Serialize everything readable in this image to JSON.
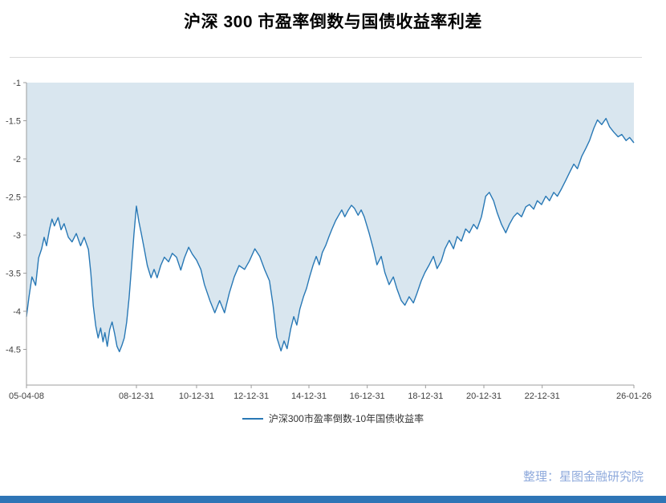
{
  "title": {
    "text": "沪深 300 市盈率倒数与国债收益率利差"
  },
  "legend": {
    "label": "沪深300市盈率倒数-10年国债收益率"
  },
  "source": {
    "text": "整理：星图金融研究院"
  },
  "colors": {
    "line": "#2878b5",
    "fill": "#d9e6ef",
    "axis": "#9c9c9c",
    "tick_text": "#404040",
    "footer_bar": "#2e75b6",
    "source_text": "#8faadc"
  },
  "chart_data": {
    "type": "area",
    "title": "沪深 300 市盈率倒数与国债收益率利差",
    "xlabel": "",
    "ylabel": "",
    "ylim": [
      -5,
      -1
    ],
    "grid": false,
    "legend_position": "bottom-center",
    "x_ticks": [
      {
        "f": 0.0,
        "label": "05-04-08"
      },
      {
        "f": 0.181,
        "label": "08-12-31"
      },
      {
        "f": 0.28,
        "label": "10-12-31"
      },
      {
        "f": 0.37,
        "label": "12-12-31"
      },
      {
        "f": 0.465,
        "label": "14-12-31"
      },
      {
        "f": 0.561,
        "label": "16-12-31"
      },
      {
        "f": 0.657,
        "label": "18-12-31"
      },
      {
        "f": 0.753,
        "label": "20-12-31"
      },
      {
        "f": 0.849,
        "label": "22-12-31"
      },
      {
        "f": 1.0,
        "label": "26-01-26"
      }
    ],
    "y_ticks": [
      {
        "v": -1.0,
        "label": "-1"
      },
      {
        "v": -1.5,
        "label": "-1.5"
      },
      {
        "v": -2.0,
        "label": "-2"
      },
      {
        "v": -2.5,
        "label": "-2.5"
      },
      {
        "v": -3.0,
        "label": "-3"
      },
      {
        "v": -3.5,
        "label": "-3.5"
      },
      {
        "v": -4.0,
        "label": "-4"
      },
      {
        "v": -4.5,
        "label": "-4.5"
      }
    ],
    "series": [
      {
        "name": "沪深300市盈率倒数-10年国债收益率",
        "points": [
          [
            0.0,
            -4.07
          ],
          [
            0.004,
            -3.82
          ],
          [
            0.009,
            -3.55
          ],
          [
            0.015,
            -3.66
          ],
          [
            0.02,
            -3.3
          ],
          [
            0.025,
            -3.18
          ],
          [
            0.029,
            -3.03
          ],
          [
            0.033,
            -3.14
          ],
          [
            0.038,
            -2.92
          ],
          [
            0.042,
            -2.79
          ],
          [
            0.046,
            -2.88
          ],
          [
            0.052,
            -2.77
          ],
          [
            0.057,
            -2.93
          ],
          [
            0.062,
            -2.85
          ],
          [
            0.069,
            -3.03
          ],
          [
            0.075,
            -3.09
          ],
          [
            0.082,
            -2.98
          ],
          [
            0.089,
            -3.14
          ],
          [
            0.095,
            -3.03
          ],
          [
            0.102,
            -3.19
          ],
          [
            0.106,
            -3.5
          ],
          [
            0.11,
            -3.93
          ],
          [
            0.114,
            -4.19
          ],
          [
            0.118,
            -4.35
          ],
          [
            0.122,
            -4.22
          ],
          [
            0.126,
            -4.4
          ],
          [
            0.129,
            -4.28
          ],
          [
            0.133,
            -4.46
          ],
          [
            0.137,
            -4.24
          ],
          [
            0.141,
            -4.14
          ],
          [
            0.145,
            -4.29
          ],
          [
            0.149,
            -4.46
          ],
          [
            0.153,
            -4.53
          ],
          [
            0.157,
            -4.45
          ],
          [
            0.161,
            -4.35
          ],
          [
            0.165,
            -4.14
          ],
          [
            0.169,
            -3.82
          ],
          [
            0.173,
            -3.4
          ],
          [
            0.177,
            -2.98
          ],
          [
            0.181,
            -2.62
          ],
          [
            0.185,
            -2.82
          ],
          [
            0.189,
            -2.98
          ],
          [
            0.194,
            -3.19
          ],
          [
            0.199,
            -3.4
          ],
          [
            0.205,
            -3.56
          ],
          [
            0.21,
            -3.45
          ],
          [
            0.215,
            -3.56
          ],
          [
            0.221,
            -3.4
          ],
          [
            0.227,
            -3.29
          ],
          [
            0.234,
            -3.35
          ],
          [
            0.24,
            -3.24
          ],
          [
            0.247,
            -3.29
          ],
          [
            0.254,
            -3.46
          ],
          [
            0.26,
            -3.3
          ],
          [
            0.267,
            -3.16
          ],
          [
            0.273,
            -3.25
          ],
          [
            0.28,
            -3.33
          ],
          [
            0.287,
            -3.45
          ],
          [
            0.293,
            -3.65
          ],
          [
            0.302,
            -3.86
          ],
          [
            0.31,
            -4.02
          ],
          [
            0.318,
            -3.86
          ],
          [
            0.326,
            -4.02
          ],
          [
            0.334,
            -3.76
          ],
          [
            0.342,
            -3.55
          ],
          [
            0.35,
            -3.4
          ],
          [
            0.359,
            -3.45
          ],
          [
            0.367,
            -3.34
          ],
          [
            0.376,
            -3.18
          ],
          [
            0.384,
            -3.28
          ],
          [
            0.392,
            -3.45
          ],
          [
            0.4,
            -3.6
          ],
          [
            0.406,
            -3.92
          ],
          [
            0.412,
            -4.34
          ],
          [
            0.419,
            -4.52
          ],
          [
            0.424,
            -4.39
          ],
          [
            0.429,
            -4.49
          ],
          [
            0.435,
            -4.23
          ],
          [
            0.44,
            -4.07
          ],
          [
            0.445,
            -4.18
          ],
          [
            0.45,
            -3.97
          ],
          [
            0.456,
            -3.81
          ],
          [
            0.461,
            -3.7
          ],
          [
            0.466,
            -3.55
          ],
          [
            0.472,
            -3.39
          ],
          [
            0.477,
            -3.28
          ],
          [
            0.482,
            -3.39
          ],
          [
            0.487,
            -3.23
          ],
          [
            0.493,
            -3.13
          ],
          [
            0.498,
            -3.02
          ],
          [
            0.503,
            -2.92
          ],
          [
            0.509,
            -2.81
          ],
          [
            0.514,
            -2.74
          ],
          [
            0.519,
            -2.67
          ],
          [
            0.524,
            -2.76
          ],
          [
            0.53,
            -2.67
          ],
          [
            0.535,
            -2.61
          ],
          [
            0.54,
            -2.65
          ],
          [
            0.546,
            -2.74
          ],
          [
            0.551,
            -2.67
          ],
          [
            0.556,
            -2.76
          ],
          [
            0.564,
            -2.97
          ],
          [
            0.571,
            -3.18
          ],
          [
            0.577,
            -3.39
          ],
          [
            0.584,
            -3.28
          ],
          [
            0.59,
            -3.49
          ],
          [
            0.597,
            -3.65
          ],
          [
            0.604,
            -3.55
          ],
          [
            0.61,
            -3.71
          ],
          [
            0.617,
            -3.86
          ],
          [
            0.623,
            -3.92
          ],
          [
            0.63,
            -3.81
          ],
          [
            0.637,
            -3.89
          ],
          [
            0.643,
            -3.76
          ],
          [
            0.65,
            -3.6
          ],
          [
            0.656,
            -3.49
          ],
          [
            0.663,
            -3.39
          ],
          [
            0.67,
            -3.28
          ],
          [
            0.676,
            -3.44
          ],
          [
            0.683,
            -3.34
          ],
          [
            0.689,
            -3.18
          ],
          [
            0.696,
            -3.07
          ],
          [
            0.703,
            -3.18
          ],
          [
            0.709,
            -3.02
          ],
          [
            0.716,
            -3.08
          ],
          [
            0.723,
            -2.92
          ],
          [
            0.729,
            -2.97
          ],
          [
            0.736,
            -2.86
          ],
          [
            0.742,
            -2.92
          ],
          [
            0.749,
            -2.76
          ],
          [
            0.756,
            -2.49
          ],
          [
            0.762,
            -2.44
          ],
          [
            0.769,
            -2.55
          ],
          [
            0.775,
            -2.71
          ],
          [
            0.782,
            -2.86
          ],
          [
            0.789,
            -2.97
          ],
          [
            0.795,
            -2.86
          ],
          [
            0.802,
            -2.76
          ],
          [
            0.808,
            -2.71
          ],
          [
            0.815,
            -2.76
          ],
          [
            0.822,
            -2.63
          ],
          [
            0.828,
            -2.6
          ],
          [
            0.835,
            -2.66
          ],
          [
            0.841,
            -2.55
          ],
          [
            0.848,
            -2.6
          ],
          [
            0.855,
            -2.49
          ],
          [
            0.861,
            -2.55
          ],
          [
            0.868,
            -2.44
          ],
          [
            0.874,
            -2.49
          ],
          [
            0.881,
            -2.39
          ],
          [
            0.888,
            -2.28
          ],
          [
            0.894,
            -2.18
          ],
          [
            0.901,
            -2.07
          ],
          [
            0.907,
            -2.13
          ],
          [
            0.914,
            -1.97
          ],
          [
            0.921,
            -1.86
          ],
          [
            0.927,
            -1.76
          ],
          [
            0.934,
            -1.6
          ],
          [
            0.94,
            -1.49
          ],
          [
            0.947,
            -1.55
          ],
          [
            0.954,
            -1.47
          ],
          [
            0.96,
            -1.58
          ],
          [
            0.967,
            -1.65
          ],
          [
            0.974,
            -1.71
          ],
          [
            0.98,
            -1.68
          ],
          [
            0.987,
            -1.76
          ],
          [
            0.993,
            -1.72
          ],
          [
            1.0,
            -1.79
          ]
        ]
      }
    ]
  }
}
